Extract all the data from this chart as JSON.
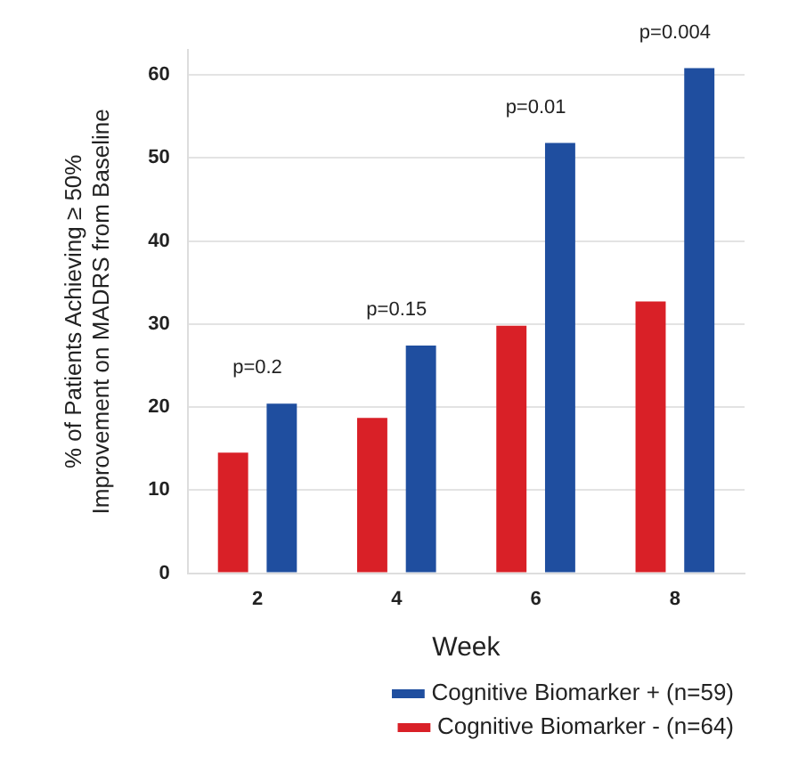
{
  "chart_data": {
    "type": "bar",
    "xlabel": "Week",
    "ylabel": "% of Patients Achieving ≥ 50%\nImprovement on MADRS from Baseline",
    "categories": [
      "2",
      "4",
      "6",
      "8"
    ],
    "series": [
      {
        "name": "Cognitive Biomarker - (n=64)",
        "color": "#d92027",
        "values": [
          14.5,
          18.7,
          29.8,
          32.7
        ]
      },
      {
        "name": "Cognitive Biomarker + (n=59)",
        "color": "#1f4e9f",
        "values": [
          20.4,
          27.4,
          51.8,
          60.8
        ]
      }
    ],
    "ylim": [
      0,
      63
    ],
    "yticks": [
      0,
      10,
      20,
      30,
      40,
      50,
      60
    ],
    "grid": "y",
    "legend": "bottom right",
    "annotations": [
      "p=0.2",
      "p=0.15",
      "p=0.01",
      "p=0.004"
    ]
  }
}
